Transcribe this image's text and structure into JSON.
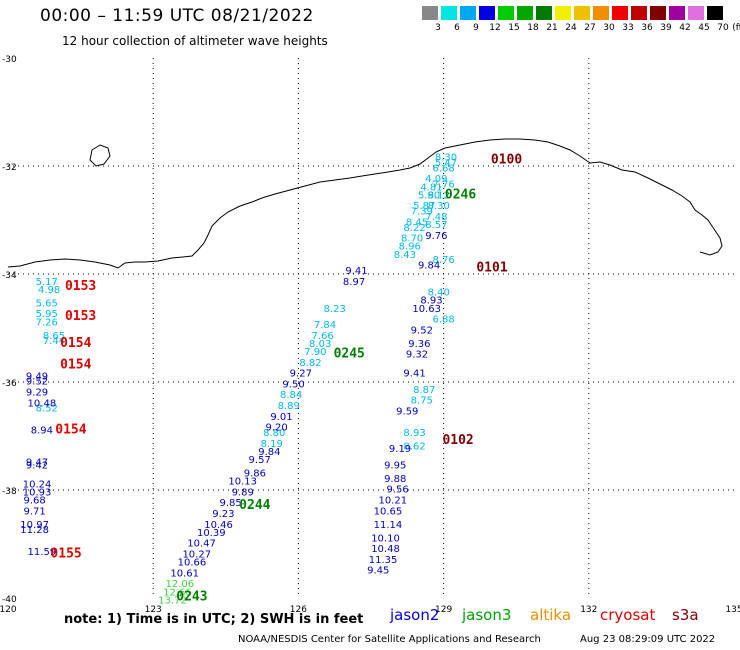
{
  "header": {
    "title": "00:00 – 11:59 UTC 08/21/2022",
    "subtitle": "12 hour collection of altimeter wave heights"
  },
  "color_scale": {
    "labels": [
      "3",
      "6",
      "9",
      "12",
      "15",
      "18",
      "21",
      "24",
      "27",
      "30",
      "33",
      "36",
      "39",
      "42",
      "45",
      "70"
    ],
    "unit": "(ft)",
    "colors": [
      "#888888",
      "#00e5e5",
      "#00a8f0",
      "#0000e0",
      "#00cc00",
      "#00a800",
      "#007a00",
      "#f0f000",
      "#f0c000",
      "#f09000",
      "#f00000",
      "#c00000",
      "#800000",
      "#a000a0",
      "#e070e0",
      "#000000"
    ]
  },
  "axes": {
    "lat_labels": [
      "-30",
      "-32",
      "-34",
      "-36",
      "-38",
      "-40"
    ],
    "lon_labels": [
      "120",
      "123",
      "126",
      "129",
      "132",
      "135"
    ]
  },
  "tracks": [
    {
      "color": "#00b8f0",
      "points": [
        {
          "lat": -31.9,
          "lon": 129.05,
          "v": "8.30"
        },
        {
          "lat": -32.0,
          "lon": 129.05,
          "v": "5.47"
        },
        {
          "lat": -32.3,
          "lon": 128.85,
          "v": "4.09"
        },
        {
          "lat": -32.45,
          "lon": 128.75,
          "v": "4.81"
        },
        {
          "lat": -32.6,
          "lon": 128.7,
          "v": "5.90"
        },
        {
          "lat": -32.8,
          "lon": 128.6,
          "v": "5.87"
        },
        {
          "lat": -32.9,
          "lon": 128.55,
          "v": "7.39"
        },
        {
          "lat": -33.1,
          "lon": 128.45,
          "v": "8.45"
        },
        {
          "lat": -33.2,
          "lon": 128.4,
          "v": "8.22"
        },
        {
          "lat": -33.4,
          "lon": 128.35,
          "v": "8.70"
        },
        {
          "lat": -33.55,
          "lon": 128.3,
          "v": "8.96"
        },
        {
          "lat": -33.7,
          "lon": 128.2,
          "v": "8.43"
        },
        {
          "lat": -34.2,
          "lon": 120.8,
          "v": "5.17"
        },
        {
          "lat": -34.35,
          "lon": 120.85,
          "v": "4.98"
        },
        {
          "lat": -34.6,
          "lon": 120.8,
          "v": "5.65"
        },
        {
          "lat": -34.8,
          "lon": 120.8,
          "v": "5.95"
        },
        {
          "lat": -34.95,
          "lon": 120.8,
          "v": "7.26"
        },
        {
          "lat": -35.2,
          "lon": 120.95,
          "v": "8.65"
        },
        {
          "lat": -35.3,
          "lon": 120.95,
          "v": "7.44"
        },
        {
          "lat": -36.55,
          "lon": 120.8,
          "v": "8.52"
        },
        {
          "lat": -34.9,
          "lon": 129.0,
          "v": "6.88"
        },
        {
          "lat": -32.1,
          "lon": 129.0,
          "v": "6.68"
        },
        {
          "lat": -33.8,
          "lon": 129.0,
          "v": "8.76"
        },
        {
          "lat": -34.4,
          "lon": 128.9,
          "v": "8.40"
        },
        {
          "lat": -37.25,
          "lon": 128.4,
          "v": "8.62"
        },
        {
          "lat": -37.0,
          "lon": 128.4,
          "v": "8.93"
        },
        {
          "lat": -36.2,
          "lon": 128.6,
          "v": "8.87"
        },
        {
          "lat": -36.4,
          "lon": 128.55,
          "v": "8.75"
        },
        {
          "lat": -35.7,
          "lon": 126.25,
          "v": "8.82"
        },
        {
          "lat": -36.3,
          "lon": 125.85,
          "v": "8.84"
        },
        {
          "lat": -36.5,
          "lon": 125.8,
          "v": "8.89"
        },
        {
          "lat": -37.0,
          "lon": 125.5,
          "v": "8.80"
        },
        {
          "lat": -37.2,
          "lon": 125.45,
          "v": "8.19"
        },
        {
          "lat": -35.5,
          "lon": 126.35,
          "v": "7.90"
        },
        {
          "lat": -35.2,
          "lon": 126.5,
          "v": "7.66"
        },
        {
          "lat": -35.0,
          "lon": 126.55,
          "v": "7.84"
        },
        {
          "lat": -35.35,
          "lon": 126.45,
          "v": "8.03"
        },
        {
          "lat": -34.7,
          "lon": 126.75,
          "v": "8.23"
        },
        {
          "lat": -32.4,
          "lon": 129.0,
          "v": "7.76"
        },
        {
          "lat": -32.6,
          "lon": 128.9,
          "v": "8.12"
        },
        {
          "lat": -32.8,
          "lon": 128.9,
          "v": "8.30"
        },
        {
          "lat": -33.0,
          "lon": 128.85,
          "v": "7.48"
        },
        {
          "lat": -33.15,
          "lon": 128.85,
          "v": "8.57"
        }
      ]
    },
    {
      "color": "#0000c0",
      "points": [
        {
          "lat": -33.35,
          "lon": 128.85,
          "v": "9.76"
        },
        {
          "lat": -33.9,
          "lon": 128.7,
          "v": "9.84"
        },
        {
          "lat": -34.55,
          "lon": 128.75,
          "v": "8.93"
        },
        {
          "lat": -34.7,
          "lon": 128.65,
          "v": "10.63"
        },
        {
          "lat": -35.1,
          "lon": 128.55,
          "v": "9.52"
        },
        {
          "lat": -35.35,
          "lon": 128.5,
          "v": "9.36"
        },
        {
          "lat": -35.55,
          "lon": 128.45,
          "v": "9.32"
        },
        {
          "lat": -35.9,
          "lon": 128.4,
          "v": "9.41"
        },
        {
          "lat": -36.6,
          "lon": 128.25,
          "v": "9.59"
        },
        {
          "lat": -37.3,
          "lon": 128.1,
          "v": "9.19"
        },
        {
          "lat": -37.6,
          "lon": 128.0,
          "v": "9.95"
        },
        {
          "lat": -37.85,
          "lon": 128.0,
          "v": "9.88"
        },
        {
          "lat": -38.05,
          "lon": 128.05,
          "v": "9.56"
        },
        {
          "lat": -38.25,
          "lon": 127.95,
          "v": "10.21"
        },
        {
          "lat": -38.45,
          "lon": 127.85,
          "v": "10.65"
        },
        {
          "lat": -38.7,
          "lon": 127.85,
          "v": "11.14"
        },
        {
          "lat": -38.95,
          "lon": 127.8,
          "v": "10.10"
        },
        {
          "lat": -39.15,
          "lon": 127.8,
          "v": "10.48"
        },
        {
          "lat": -39.35,
          "lon": 127.75,
          "v": "11.35"
        },
        {
          "lat": -39.55,
          "lon": 127.65,
          "v": "9.45"
        },
        {
          "lat": -34.0,
          "lon": 127.2,
          "v": "9.41"
        },
        {
          "lat": -34.2,
          "lon": 127.15,
          "v": "8.97"
        },
        {
          "lat": -35.9,
          "lon": 126.05,
          "v": "9.27"
        },
        {
          "lat": -36.1,
          "lon": 125.9,
          "v": "9.50"
        },
        {
          "lat": -36.7,
          "lon": 125.65,
          "v": "9.01"
        },
        {
          "lat": -36.9,
          "lon": 125.55,
          "v": "9.20"
        },
        {
          "lat": -37.35,
          "lon": 125.4,
          "v": "9.84"
        },
        {
          "lat": -37.5,
          "lon": 125.2,
          "v": "9.57"
        },
        {
          "lat": -37.75,
          "lon": 125.1,
          "v": "9.86"
        },
        {
          "lat": -37.9,
          "lon": 124.85,
          "v": "10.13"
        },
        {
          "lat": -38.1,
          "lon": 124.85,
          "v": "9.89"
        },
        {
          "lat": -38.3,
          "lon": 124.6,
          "v": "9.85"
        },
        {
          "lat": -38.5,
          "lon": 124.45,
          "v": "9.23"
        },
        {
          "lat": -38.7,
          "lon": 124.35,
          "v": "10.46"
        },
        {
          "lat": -38.85,
          "lon": 124.2,
          "v": "10.39"
        },
        {
          "lat": -39.05,
          "lon": 124.0,
          "v": "10.47"
        },
        {
          "lat": -39.25,
          "lon": 123.9,
          "v": "10.27"
        },
        {
          "lat": -39.4,
          "lon": 123.8,
          "v": "10.66"
        },
        {
          "lat": -39.6,
          "lon": 123.65,
          "v": "10.61"
        },
        {
          "lat": -35.95,
          "lon": 120.6,
          "v": "9.49"
        },
        {
          "lat": -36.05,
          "lon": 120.6,
          "v": "9.52"
        },
        {
          "lat": -36.25,
          "lon": 120.6,
          "v": "9.29"
        },
        {
          "lat": -36.45,
          "lon": 120.7,
          "v": "10.48"
        },
        {
          "lat": -36.95,
          "lon": 120.7,
          "v": "8.94"
        },
        {
          "lat": -37.55,
          "lon": 120.6,
          "v": "9.47"
        },
        {
          "lat": -37.6,
          "lon": 120.6,
          "v": "9.42"
        },
        {
          "lat": -37.95,
          "lon": 120.6,
          "v": "10.24"
        },
        {
          "lat": -38.1,
          "lon": 120.6,
          "v": "10.93"
        },
        {
          "lat": -38.25,
          "lon": 120.55,
          "v": "9.68"
        },
        {
          "lat": -38.45,
          "lon": 120.55,
          "v": "9.71"
        },
        {
          "lat": -38.7,
          "lon": 120.55,
          "v": "10.97"
        },
        {
          "lat": -38.8,
          "lon": 120.55,
          "v": "11.28"
        },
        {
          "lat": -39.2,
          "lon": 120.7,
          "v": "11.59"
        }
      ]
    },
    {
      "color": "#40d040",
      "points": [
        {
          "lat": -39.8,
          "lon": 123.55,
          "v": "12.06"
        },
        {
          "lat": -39.95,
          "lon": 123.5,
          "v": "12.66"
        },
        {
          "lat": -40.1,
          "lon": 123.4,
          "v": "13.72"
        }
      ]
    }
  ],
  "time_labels": [
    {
      "t": "0100",
      "lat": -31.95,
      "lon": 130.3,
      "color": "#800000"
    },
    {
      "t": "0101",
      "lat": -33.95,
      "lon": 130.0,
      "color": "#800000"
    },
    {
      "t": "0102",
      "lat": -37.15,
      "lon": 129.3,
      "color": "#800000"
    },
    {
      "t": "0246",
      "lat": -32.6,
      "lon": 129.35,
      "color": "#008000"
    },
    {
      "t": "0245",
      "lat": -35.55,
      "lon": 127.05,
      "color": "#008000"
    },
    {
      "t": "0244",
      "lat": -38.35,
      "lon": 125.1,
      "color": "#008000"
    },
    {
      "t": "0243",
      "lat": -40.05,
      "lon": 123.8,
      "color": "#008000"
    },
    {
      "t": "0153",
      "lat": -34.3,
      "lon": 121.5,
      "color": "#e00000"
    },
    {
      "t": "0153",
      "lat": -34.85,
      "lon": 121.5,
      "color": "#e00000"
    },
    {
      "t": "0154",
      "lat": -35.35,
      "lon": 121.4,
      "color": "#e00000"
    },
    {
      "t": "0154",
      "lat": -35.75,
      "lon": 121.4,
      "color": "#e00000"
    },
    {
      "t": "0154",
      "lat": -36.95,
      "lon": 121.3,
      "color": "#e00000"
    },
    {
      "t": "0155",
      "lat": -39.25,
      "lon": 121.2,
      "color": "#e00000"
    }
  ],
  "footer": {
    "note": "note: 1) Time is in UTC; 2) SWH is in feet",
    "satellites": [
      {
        "name": "jason2",
        "color": "#0000e0"
      },
      {
        "name": "jason3",
        "color": "#00a000"
      },
      {
        "name": "altika",
        "color": "#f09000"
      },
      {
        "name": "cryosat",
        "color": "#e00000"
      },
      {
        "name": "s3a",
        "color": "#800000"
      }
    ],
    "credit": "NOAA/NESDIS Center for Satellite Applications and Research",
    "timestamp": "Aug 23 08:29:09 UTC 2022"
  }
}
